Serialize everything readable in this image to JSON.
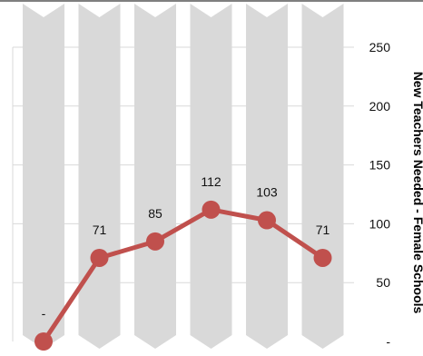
{
  "chart_data": {
    "type": "line",
    "categories": [
      "",
      "",
      "",
      "",
      "",
      ""
    ],
    "series": [
      {
        "values": [
          0,
          71,
          85,
          112,
          103,
          71
        ],
        "labels": [
          "-",
          "71",
          "85",
          "112",
          "103",
          "71"
        ]
      }
    ],
    "ylabel": "New Teachers Needed - Female Schools",
    "ylim": [
      0,
      250
    ],
    "yticks": [
      0,
      50,
      100,
      150,
      200,
      250
    ],
    "ytick_labels": [
      "-",
      "50",
      "100",
      "150",
      "200",
      "250"
    ],
    "y_axis_side": "right",
    "grid": true,
    "legend": "none",
    "colors": {
      "line": "#c0504d",
      "column": "#d9d9d9",
      "grid": "#d9d9d9",
      "top_rule": "#7f7f7f"
    }
  }
}
